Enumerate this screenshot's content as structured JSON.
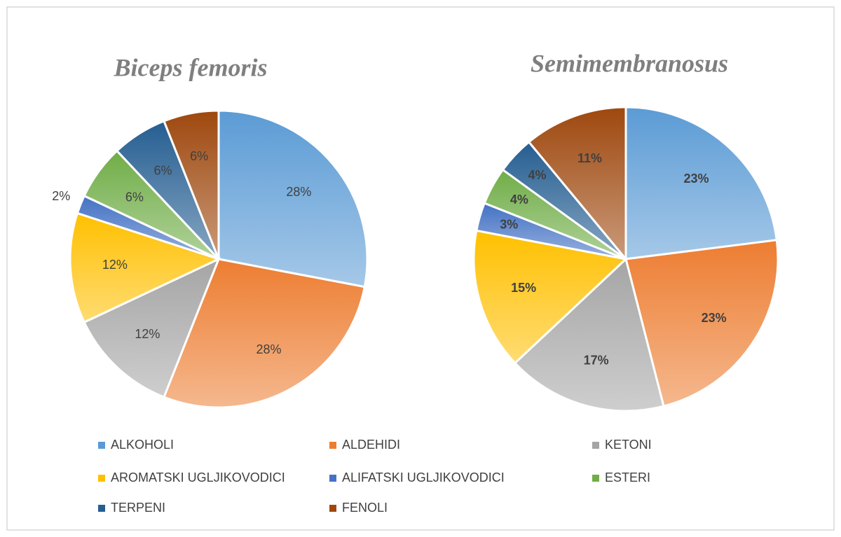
{
  "chart_data": [
    {
      "type": "pie",
      "title": "Biceps femoris",
      "categories": [
        "ALKOHOLI",
        "ALDEHIDI",
        "KETONI",
        "AROMATSKI UGLJIKOVODICI",
        "ALIFATSKI UGLJIKOVODICI",
        "ESTERI",
        "TERPENI",
        "FENOLI"
      ],
      "values": [
        28,
        28,
        12,
        12,
        2,
        6,
        6,
        6
      ],
      "value_labels": [
        "28%",
        "28%",
        "12%",
        "12%",
        "2%",
        "6%",
        "6%",
        "6%"
      ],
      "colors": [
        "#5b9bd5",
        "#ed7d31",
        "#a5a5a5",
        "#ffc000",
        "#4472c4",
        "#70ad47",
        "#255e91",
        "#9e480e"
      ]
    },
    {
      "type": "pie",
      "title": "Semimembranosus",
      "categories": [
        "ALKOHOLI",
        "ALDEHIDI",
        "KETONI",
        "AROMATSKI UGLJIKOVODICI",
        "ALIFATSKI UGLJIKOVODICI",
        "ESTERI",
        "TERPENI",
        "FENOLI"
      ],
      "values": [
        23,
        23,
        17,
        15,
        3,
        4,
        4,
        11
      ],
      "value_labels": [
        "23%",
        "23%",
        "17%",
        "15%",
        "3%",
        "4%",
        "4%",
        "11%"
      ],
      "colors": [
        "#5b9bd5",
        "#ed7d31",
        "#a5a5a5",
        "#ffc000",
        "#4472c4",
        "#70ad47",
        "#255e91",
        "#9e480e"
      ]
    }
  ]
}
